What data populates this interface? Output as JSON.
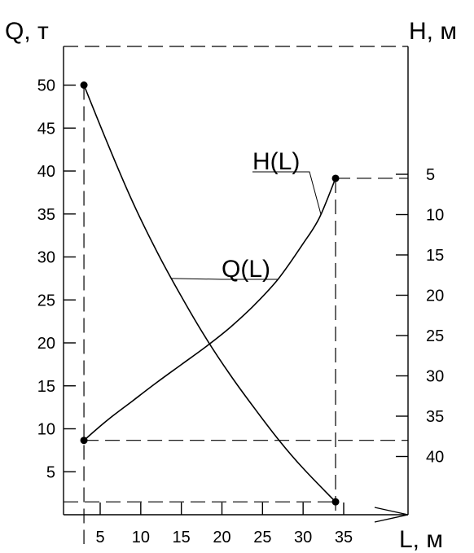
{
  "chart_data": {
    "type": "line",
    "left_axis": {
      "title": "Q, т",
      "ticks": [
        5,
        10,
        15,
        20,
        25,
        30,
        35,
        40,
        45,
        50
      ],
      "range": [
        0,
        55
      ]
    },
    "right_axis": {
      "title": "Н, м",
      "ticks": [
        5,
        10,
        15,
        20,
        25,
        30,
        35,
        40
      ],
      "range": [
        0,
        45
      ],
      "inverted": true
    },
    "x_axis": {
      "title": "L, м",
      "ticks": [
        5,
        10,
        15,
        20,
        25,
        30,
        35
      ],
      "range": [
        0,
        39
      ]
    },
    "series": [
      {
        "name": "Q(L)",
        "axis": "left",
        "x": [
          3,
          6,
          9,
          12,
          15,
          18,
          21,
          24,
          27,
          30,
          34
        ],
        "y": [
          50,
          43,
          36.4,
          30.6,
          25.4,
          20.6,
          16.3,
          12.4,
          8.7,
          5.4,
          1.5
        ]
      },
      {
        "name": "H(L)",
        "axis": "right",
        "x": [
          3,
          6,
          9,
          12,
          15,
          18,
          21,
          24,
          27,
          30,
          32,
          34
        ],
        "y": [
          38,
          35.4,
          33.1,
          30.8,
          28.6,
          26.4,
          24,
          21.2,
          17.9,
          13.6,
          10.4,
          5.5
        ]
      }
    ],
    "grid": false,
    "legend": "none"
  }
}
